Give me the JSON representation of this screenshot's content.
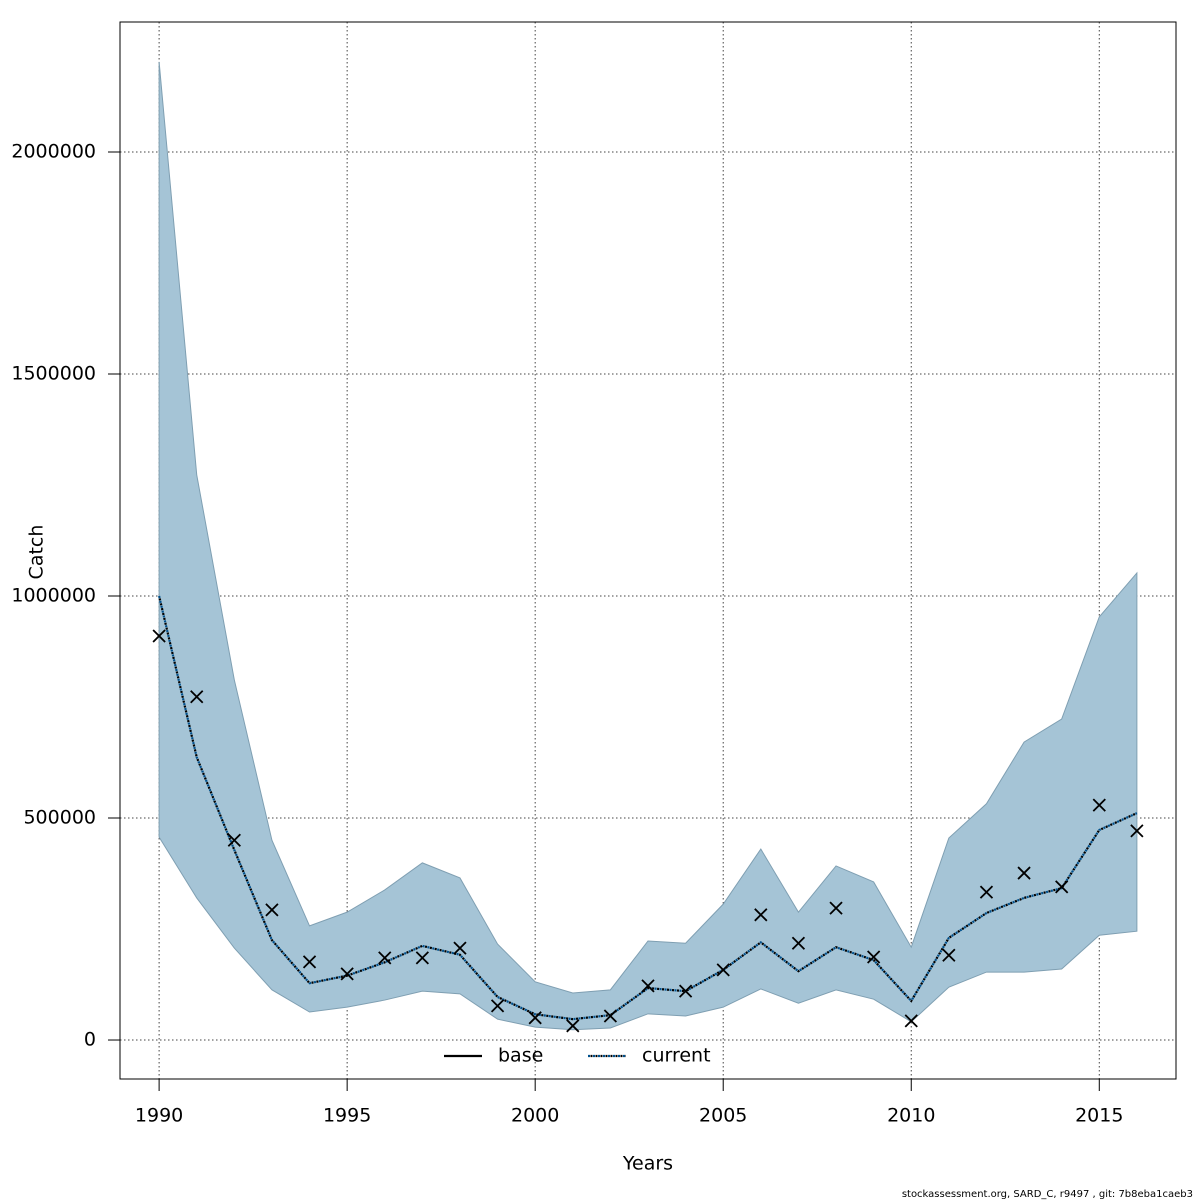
{
  "chart_data": {
    "type": "line",
    "x_label": "Years",
    "y_label": "Catch",
    "x": [
      1990,
      1991,
      1992,
      1993,
      1994,
      1995,
      1996,
      1997,
      1998,
      1999,
      2000,
      2001,
      2002,
      2003,
      2004,
      2005,
      2006,
      2007,
      2008,
      2009,
      2010,
      2011,
      2012,
      2013,
      2014,
      2015,
      2016
    ],
    "series": [
      {
        "name": "base",
        "color": "#000000",
        "dash": "solid"
      },
      {
        "name": "current",
        "color": "#00508c",
        "dash": "dotted",
        "values": [
          1000000,
          637000,
          428000,
          225000,
          128000,
          145000,
          175000,
          212000,
          192000,
          97000,
          58000,
          47000,
          56000,
          117000,
          110000,
          158000,
          220000,
          155000,
          209000,
          180000,
          88000,
          230000,
          286000,
          320000,
          342000,
          473000,
          511000
        ]
      }
    ],
    "band": {
      "color": "#a5c4d6",
      "upper": [
        2203000,
        1273000,
        811000,
        450000,
        257000,
        288000,
        338000,
        399000,
        365000,
        216000,
        131000,
        106000,
        113000,
        223000,
        218000,
        306000,
        430000,
        288000,
        392000,
        356000,
        209000,
        455000,
        532000,
        671000,
        723000,
        953000,
        1052000
      ],
      "lower": [
        457000,
        320000,
        207000,
        113000,
        63000,
        74000,
        90000,
        110000,
        104000,
        47000,
        29000,
        23000,
        27000,
        59000,
        54000,
        74000,
        115000,
        83000,
        113000,
        92000,
        41000,
        119000,
        153000,
        153000,
        160000,
        236000,
        245000
      ]
    },
    "observed": {
      "color": "#000000",
      "marker": "x",
      "values": [
        910000,
        773000,
        450000,
        293000,
        176000,
        149000,
        185000,
        185000,
        207000,
        77000,
        50000,
        32000,
        54000,
        122000,
        110000,
        158000,
        282000,
        218000,
        297000,
        187000,
        43000,
        191000,
        333000,
        376000,
        345000,
        529000,
        471000
      ]
    },
    "xlim": [
      1988.96,
      2017.04
    ],
    "ylim": [
      -87800,
      2292800
    ],
    "xticks": [
      1990,
      1995,
      2000,
      2005,
      2010,
      2015
    ],
    "yticks": [
      0,
      500000,
      1000000,
      1500000,
      2000000
    ],
    "grid": true,
    "legend": "bottom",
    "footnote": "stockassessment.org, SARD_C, r9497 , git: 7b8eba1caeb3"
  }
}
